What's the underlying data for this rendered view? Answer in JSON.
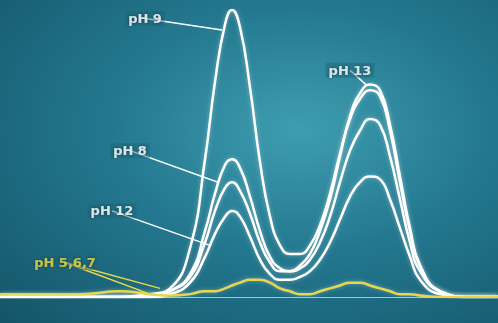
{
  "chart_data": {
    "type": "line",
    "x": [
      0,
      40,
      80,
      120,
      150,
      170,
      190,
      205,
      215,
      225,
      232,
      240,
      250,
      260,
      270,
      280,
      290,
      300,
      310,
      320,
      330,
      340,
      350,
      360,
      370,
      380,
      390,
      400,
      410,
      420,
      440,
      470,
      498
    ],
    "xlim": [
      0,
      498
    ],
    "ylim": [
      0,
      100
    ],
    "tick_labels": false,
    "grid": false,
    "series": [
      {
        "name": "pH 9",
        "color": "#ffffff",
        "values": [
          0,
          0,
          0,
          0,
          1,
          3,
          17,
          48,
          75,
          95,
          100,
          94,
          73,
          47,
          28,
          18,
          15,
          15,
          18,
          25,
          36,
          50,
          62,
          69,
          72,
          70,
          58,
          40,
          23,
          11,
          2,
          0,
          0
        ],
        "annotation": {
          "x": 145,
          "y": 97,
          "points_to": [
            [
              222,
              93
            ]
          ]
        }
      },
      {
        "name": "pH 13",
        "color": "#ffffff",
        "values": [
          0,
          0,
          0,
          0,
          0,
          2,
          7,
          19,
          30,
          38,
          40,
          37,
          29,
          19,
          12,
          9,
          9,
          11,
          15,
          23,
          34,
          49,
          63,
          71,
          74,
          72,
          60,
          42,
          24,
          11,
          2,
          0,
          0
        ],
        "annotation": {
          "x": 350,
          "y": 79,
          "points_to": [
            [
              366,
              74
            ]
          ]
        }
      },
      {
        "name": "pH 8",
        "color": "#ffffff",
        "values": [
          0,
          0,
          0,
          0,
          0,
          2,
          8,
          23,
          36,
          46,
          48,
          45,
          35,
          23,
          14,
          10,
          9,
          10,
          13,
          19,
          28,
          40,
          51,
          58,
          62,
          60,
          49,
          34,
          19,
          9,
          2,
          0,
          0
        ],
        "annotation": {
          "x": 130,
          "y": 51,
          "points_to": [
            [
              218,
              40
            ]
          ]
        }
      },
      {
        "name": "pH 12",
        "color": "#ffffff",
        "values": [
          0,
          0,
          0,
          0,
          0,
          1,
          5,
          14,
          22,
          28,
          30,
          28,
          21,
          13,
          8,
          6,
          6,
          7,
          9,
          13,
          19,
          27,
          35,
          40,
          42,
          41,
          34,
          24,
          14,
          6,
          1,
          0,
          0
        ],
        "annotation": {
          "x": 112,
          "y": 30,
          "points_to": [
            [
              210,
              18
            ]
          ]
        }
      },
      {
        "name": "pH 5,6,7",
        "color": "#e8d84a",
        "values": [
          1,
          1,
          1,
          2,
          1,
          0.5,
          1,
          2,
          2,
          3,
          4,
          5,
          6,
          6,
          5,
          3,
          2,
          1,
          1,
          2,
          3,
          4,
          5,
          5,
          4,
          3,
          2,
          1,
          1,
          0.5,
          0,
          0,
          0
        ],
        "annotation": {
          "x": 65,
          "y": 12,
          "points_to": [
            [
              160,
              3
            ],
            [
              150,
              1
            ]
          ]
        }
      }
    ]
  }
}
